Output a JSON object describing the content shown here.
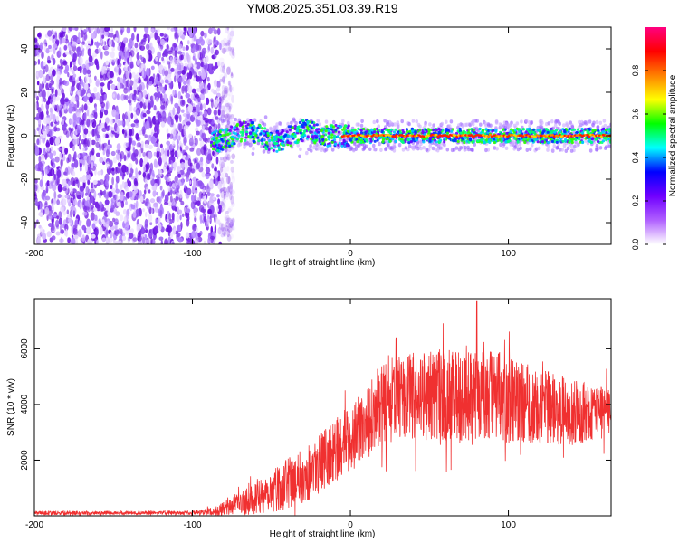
{
  "title": "YM08.2025.351.03.39.R19",
  "chart_data": [
    {
      "type": "heatmap",
      "name": "spectrogram",
      "xlabel": "Height of straight line (km)",
      "ylabel": "Frequency (Hz)",
      "xlim": [
        -200,
        165
      ],
      "ylim": [
        -50,
        50
      ],
      "xticks": [
        -200,
        -100,
        0,
        100
      ],
      "yticks": [
        -40,
        -20,
        0,
        20,
        40
      ],
      "noise_region_x": [
        -200,
        -82
      ],
      "signal_start_x": -88,
      "signal_center_hz": 0,
      "signal_halfwidth_hz": 4,
      "colorbar": {
        "label": "Normalized spectral amplitude",
        "range": [
          0.0,
          1.0
        ],
        "ticks": [
          0.0,
          0.2,
          0.4,
          0.6,
          0.8
        ],
        "tick_labels": [
          "0.0",
          "0.2",
          "0.4",
          "0.6",
          "0.8"
        ],
        "colors": [
          "#ffffff",
          "#b060ff",
          "#7000ff",
          "#0000ff",
          "#00ffff",
          "#00ff00",
          "#ffff00",
          "#ff8000",
          "#ff0000",
          "#ff0080"
        ]
      }
    },
    {
      "type": "line",
      "name": "snr",
      "xlabel": "Height of straight line (km)",
      "ylabel": "SNR (10 * v/v)",
      "xlim": [
        -200,
        165
      ],
      "ylim": [
        0,
        7800
      ],
      "xticks": [
        -200,
        -100,
        0,
        100
      ],
      "yticks": [
        2000,
        4000,
        6000
      ],
      "color": "#f03030",
      "envelope": {
        "x": [
          -200,
          -100,
          -85,
          -70,
          -50,
          -30,
          -15,
          0,
          10,
          20,
          40,
          60,
          80,
          100,
          120,
          140,
          165
        ],
        "mean": [
          100,
          110,
          160,
          450,
          900,
          1400,
          2100,
          2800,
          3300,
          4100,
          4300,
          4300,
          4400,
          4200,
          3900,
          3700,
          3800
        ],
        "spread": [
          70,
          70,
          160,
          450,
          800,
          1000,
          1100,
          1200,
          1300,
          1500,
          1600,
          1700,
          1800,
          1600,
          1400,
          1200,
          900
        ]
      },
      "peak": {
        "x": 80,
        "y": 7700
      }
    }
  ]
}
